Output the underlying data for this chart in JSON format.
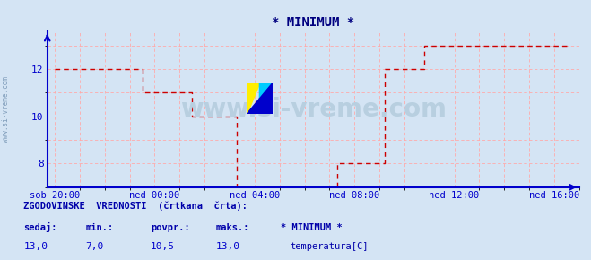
{
  "title": "* MINIMUM *",
  "title_color": "#000080",
  "bg_color": "#d4e4f4",
  "plot_bg_color": "#d4e4f4",
  "line_color": "#cc0000",
  "axis_color": "#0000cc",
  "grid_color": "#ffaaaa",
  "text_color": "#0000aa",
  "ylim": [
    7.0,
    13.6
  ],
  "yticks": [
    8,
    10,
    12
  ],
  "x_tick_labels": [
    "sob 20:00",
    "ned 00:00",
    "ned 04:00",
    "ned 08:00",
    "ned 12:00",
    "ned 16:00"
  ],
  "x_tick_positions": [
    0,
    4,
    8,
    12,
    16,
    20
  ],
  "time_series_x": [
    0.0,
    3.5,
    3.5,
    5.5,
    5.5,
    7.3,
    7.3,
    11.3,
    11.3,
    13.2,
    13.2,
    14.8,
    14.8,
    20.5
  ],
  "time_series_y": [
    12.0,
    12.0,
    11.0,
    11.0,
    10.0,
    10.0,
    7.0,
    7.0,
    8.0,
    8.0,
    12.0,
    12.0,
    13.0,
    13.0
  ],
  "watermark": "www.si-vreme.com",
  "left_label": "www.si-vreme.com",
  "footer_title": "ZGODOVINSKE  VREDNOSTI  (črtkana  črta):",
  "footer_headers": [
    "sedaj:",
    "min.:",
    "povpr.:",
    "maks.:",
    "* MINIMUM *"
  ],
  "footer_values": [
    "13,0",
    "7,0",
    "10,5",
    "13,0"
  ],
  "footer_legend_label": "temperatura[C]",
  "footer_legend_color": "#cc0000",
  "figsize": [
    6.59,
    2.9
  ],
  "dpi": 100
}
